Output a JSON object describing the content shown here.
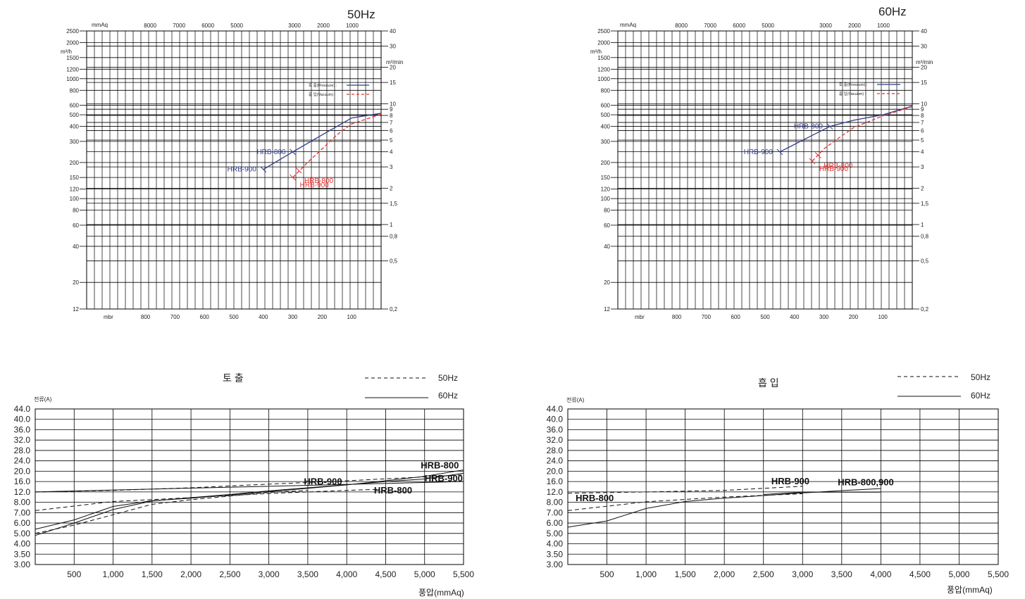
{
  "colors": {
    "pressure": "#2e3a8c",
    "vacuum": "#e83030",
    "line": "#111111",
    "grid": "#000000"
  },
  "chart_data": [
    {
      "type": "line",
      "id": "perf50",
      "freq_label": "50Hz",
      "left_unit": "m³/h",
      "right_unit": "m³/min",
      "top_unit": "mmAq",
      "bottom_unit": "mbr",
      "left_ticks": [
        "2500",
        "2000",
        "1500",
        "1200",
        "1000",
        "800",
        "600",
        "500",
        "400",
        "300",
        "200",
        "150",
        "120",
        "100",
        "80",
        "60",
        "40",
        "20",
        "12"
      ],
      "right_ticks": [
        "40",
        "30",
        "20",
        "15",
        "10",
        "9",
        "8",
        "7",
        "6",
        "5",
        "4",
        "3",
        "2",
        "1,5",
        "1",
        "0,8",
        "0,5",
        "0,2"
      ],
      "top_ticks": [
        "8000",
        "7000",
        "6000",
        "5000",
        "3000",
        "2000",
        "1000"
      ],
      "bottom_ticks": [
        "800",
        "700",
        "600",
        "500",
        "400",
        "300",
        "200",
        "100"
      ],
      "legend": {
        "pressure": "토 출(Pressure) :",
        "vacuum": "흡 입(Vacuum) :"
      },
      "series": [
        {
          "name": "토 출(Pressure)",
          "kind": "pressure",
          "points": [
            [
              400,
              175
            ],
            [
              300,
              245
            ],
            [
              200,
              340
            ],
            [
              100,
              470
            ],
            [
              0,
              515
            ]
          ]
        },
        {
          "name": "흡 입(Vacuum)",
          "kind": "vacuum",
          "points": [
            [
              300,
              150
            ],
            [
              250,
              200
            ],
            [
              200,
              260
            ],
            [
              150,
              340
            ],
            [
              100,
              420
            ],
            [
              0,
              505
            ]
          ]
        }
      ],
      "annotations": [
        {
          "text": "HRB-800",
          "kind": "pressure",
          "at": [
            300,
            245
          ]
        },
        {
          "text": "HRB-900",
          "kind": "pressure",
          "at": [
            400,
            175
          ]
        },
        {
          "text": "HRB-800",
          "kind": "vacuum",
          "at": [
            280,
            172
          ]
        },
        {
          "text": "HRB-900",
          "kind": "vacuum",
          "at": [
            300,
            150
          ]
        }
      ]
    },
    {
      "type": "line",
      "id": "perf60",
      "freq_label": "60Hz",
      "left_unit": "m³/h",
      "right_unit": "m³/min",
      "top_unit": "mmAq",
      "bottom_unit": "mbr",
      "left_ticks": [
        "2500",
        "2000",
        "1500",
        "1200",
        "1000",
        "800",
        "600",
        "500",
        "400",
        "300",
        "200",
        "150",
        "120",
        "100",
        "80",
        "60",
        "40",
        "20",
        "12"
      ],
      "right_ticks": [
        "40",
        "30",
        "20",
        "15",
        "10",
        "9",
        "8",
        "7",
        "6",
        "5",
        "4",
        "3",
        "2",
        "1,5",
        "1",
        "0,8",
        "0,5",
        "0,2"
      ],
      "top_ticks": [
        "8000",
        "7000",
        "6000",
        "5000",
        "3000",
        "2000",
        "1000"
      ],
      "bottom_ticks": [
        "800",
        "700",
        "600",
        "500",
        "400",
        "300",
        "200",
        "100"
      ],
      "legend": {
        "pressure": "토 출(Pressure) :",
        "vacuum": "흡 입(Vacuum) :"
      },
      "series": [
        {
          "name": "토 출(Pressure)",
          "kind": "pressure",
          "points": [
            [
              450,
              245
            ],
            [
              280,
              400
            ],
            [
              200,
              450
            ],
            [
              100,
              500
            ],
            [
              0,
              590
            ]
          ]
        },
        {
          "name": "흡 입(Vacuum)",
          "kind": "vacuum",
          "points": [
            [
              340,
              205
            ],
            [
              300,
              260
            ],
            [
              250,
              320
            ],
            [
              200,
              390
            ],
            [
              100,
              490
            ],
            [
              0,
              585
            ]
          ]
        }
      ],
      "annotations": [
        {
          "text": "HRB-800",
          "kind": "pressure",
          "at": [
            280,
            400
          ]
        },
        {
          "text": "HRB-900",
          "kind": "pressure",
          "at": [
            450,
            245
          ]
        },
        {
          "text": "HRB-800",
          "kind": "vacuum",
          "at": [
            320,
            230
          ]
        },
        {
          "text": "HRB-900",
          "kind": "vacuum",
          "at": [
            340,
            205
          ]
        }
      ]
    },
    {
      "type": "line",
      "id": "amp-discharge",
      "title": "토 출",
      "ylabel": "전류(A)",
      "xlabel": "풍압(mmAq)",
      "legend": [
        {
          "label": "50Hz",
          "style": "dashed"
        },
        {
          "label": "60Hz",
          "style": "solid"
        }
      ],
      "y_ticks": [
        "44.0",
        "40.0",
        "36.0",
        "32.0",
        "28.0",
        "24.0",
        "20.0",
        "16.0",
        "12.0",
        "8.00",
        "7.00",
        "6.00",
        "5.00",
        "4.00",
        "3.50",
        "3.00"
      ],
      "x_ticks": [
        "500",
        "1,000",
        "1,500",
        "2,000",
        "2,500",
        "3,000",
        "3,500",
        "4,000",
        "4,500",
        "5,000",
        "5,500"
      ],
      "series": [
        {
          "style": "dashed",
          "points": [
            [
              0,
              12.0
            ],
            [
              1000,
              12.6
            ],
            [
              2000,
              13.6
            ],
            [
              3000,
              15.0
            ],
            [
              4000,
              16.3
            ],
            [
              5000,
              17.8
            ],
            [
              5500,
              18.6
            ]
          ]
        },
        {
          "style": "dashed",
          "points": [
            [
              0,
              7.2
            ],
            [
              1000,
              8.3
            ],
            [
              2000,
              9.8
            ],
            [
              3000,
              11.4
            ],
            [
              4000,
              12.6
            ],
            [
              4400,
              13.0
            ]
          ]
        },
        {
          "style": "dashed",
          "points": [
            [
              0,
              5.0
            ],
            [
              500,
              5.8
            ],
            [
              1000,
              6.8
            ],
            [
              1500,
              7.8
            ],
            [
              2000,
              9.0
            ],
            [
              2500,
              10.4
            ],
            [
              3000,
              11.8
            ],
            [
              3500,
              12.6
            ]
          ]
        },
        {
          "style": "solid",
          "points": [
            [
              0,
              5.4
            ],
            [
              500,
              6.3
            ],
            [
              1000,
              7.6
            ],
            [
              1500,
              8.6
            ],
            [
              2000,
              9.6
            ],
            [
              2500,
              10.8
            ],
            [
              3000,
              12.1
            ],
            [
              3500,
              13.4
            ],
            [
              4000,
              14.7
            ],
            [
              4500,
              16.3
            ],
            [
              5000,
              18.0
            ],
            [
              5500,
              20.5
            ]
          ]
        },
        {
          "style": "solid",
          "points": [
            [
              0,
              4.8
            ],
            [
              500,
              6.0
            ],
            [
              1000,
              7.3
            ],
            [
              1500,
              8.5
            ],
            [
              2000,
              9.8
            ],
            [
              2500,
              11.0
            ],
            [
              3000,
              12.4
            ],
            [
              3500,
              13.6
            ],
            [
              4000,
              14.8
            ],
            [
              4500,
              16.0
            ],
            [
              5000,
              17.0
            ],
            [
              5500,
              19.2
            ]
          ]
        },
        {
          "style": "solid",
          "points": [
            [
              0,
              12.0
            ],
            [
              5500,
              16.0
            ]
          ]
        }
      ],
      "annotations": [
        {
          "text": "HRB-900",
          "x": 3450,
          "y": 14.8
        },
        {
          "text": "HRB-800",
          "x": 4350,
          "y": 11.4
        },
        {
          "text": "HRB-800",
          "x": 4950,
          "y": 21.0
        },
        {
          "text": "HRB-900",
          "x": 5000,
          "y": 16.0
        }
      ]
    },
    {
      "type": "line",
      "id": "amp-suction",
      "title": "흡 입",
      "ylabel": "전류(A)",
      "xlabel": "풍압(mmAq)",
      "legend": [
        {
          "label": "50Hz",
          "style": "dashed"
        },
        {
          "label": "60Hz",
          "style": "solid"
        }
      ],
      "y_ticks": [
        "44.0",
        "40.0",
        "36.0",
        "32.0",
        "28.0",
        "24.0",
        "20.0",
        "16.0",
        "12.0",
        "8.00",
        "7.00",
        "6.00",
        "5.00",
        "4.00",
        "3.50",
        "3.00"
      ],
      "x_ticks": [
        "500",
        "1,000",
        "1,500",
        "2,000",
        "2,500",
        "3,000",
        "3,500",
        "4,000",
        "4,500",
        "5,000",
        "5,500"
      ],
      "series": [
        {
          "style": "dashed",
          "points": [
            [
              0,
              11.5
            ],
            [
              1000,
              12.0
            ],
            [
              2000,
              12.6
            ],
            [
              3000,
              14.2
            ]
          ]
        },
        {
          "style": "dashed",
          "points": [
            [
              0,
              7.2
            ],
            [
              1000,
              8.2
            ],
            [
              2000,
              10.0
            ],
            [
              3000,
              11.3
            ]
          ]
        },
        {
          "style": "solid",
          "points": [
            [
              0,
              5.6
            ],
            [
              500,
              6.2
            ],
            [
              1000,
              7.4
            ],
            [
              1500,
              8.3
            ],
            [
              2000,
              9.6
            ],
            [
              2500,
              10.6
            ],
            [
              3000,
              11.6
            ],
            [
              3500,
              12.5
            ],
            [
              4000,
              13.3
            ]
          ]
        },
        {
          "style": "solid",
          "points": [
            [
              2500,
              11.0
            ],
            [
              3000,
              11.9
            ],
            [
              4000,
              11.9
            ]
          ]
        }
      ],
      "annotations": [
        {
          "text": "HRB-800",
          "x": 100,
          "y": 8.4
        },
        {
          "text": "HRB-900",
          "x": 2600,
          "y": 15.0
        },
        {
          "text": "HRB-800,900",
          "x": 3450,
          "y": 14.6
        }
      ]
    }
  ]
}
